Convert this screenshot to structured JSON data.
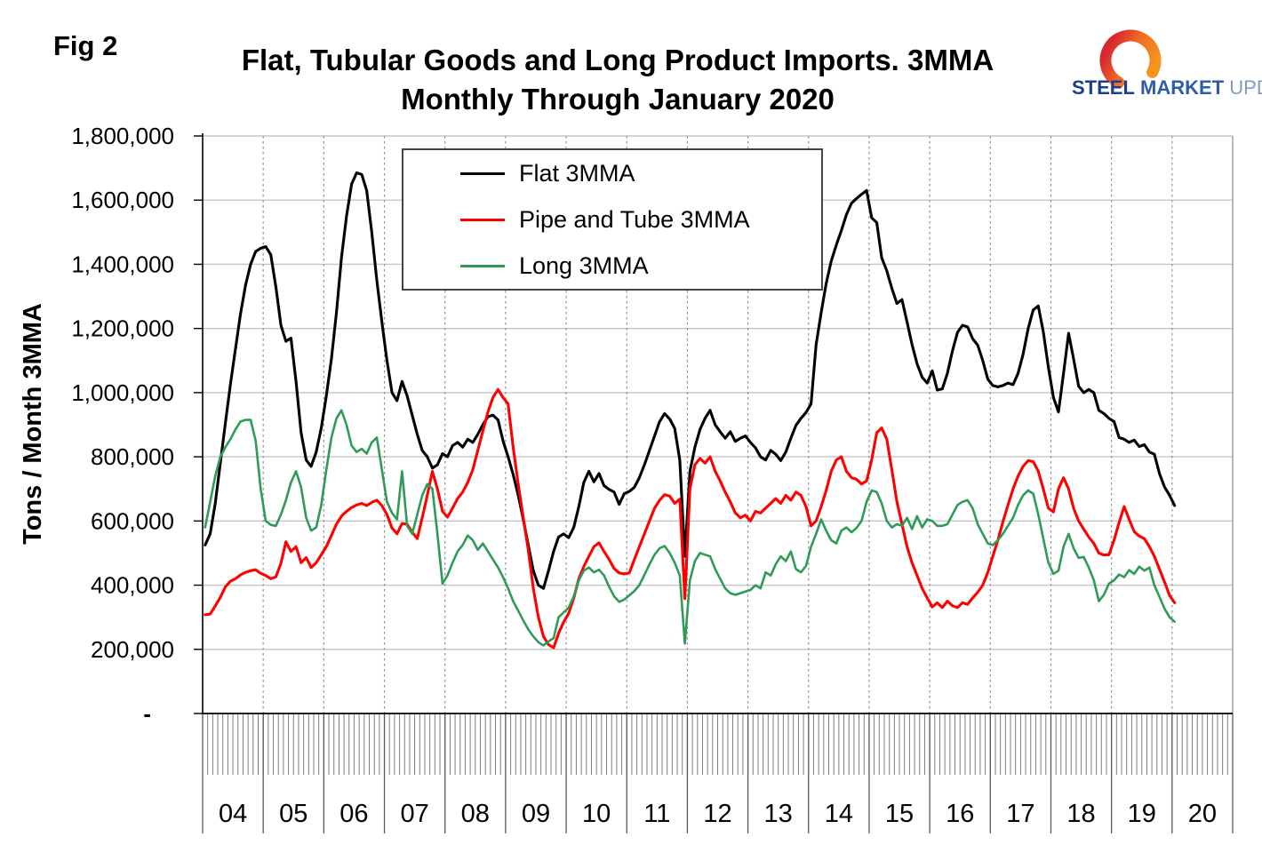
{
  "figure_label": "Fig 2",
  "title_line1": "Flat, Tubular Goods and Long Product Imports. 3MMA",
  "title_line2": "Monthly Through January 2020",
  "logo": {
    "steel": "STEEL",
    "market": "MARKET",
    "update": "UPDATE"
  },
  "y_axis_title": "Tons / Month 3MMA",
  "chart_data": {
    "type": "line",
    "title": "Flat, Tubular Goods and Long Product Imports. 3MMA Monthly Through January 2020",
    "xlabel": "",
    "ylabel": "Tons / Month 3MMA",
    "frequency": "monthly",
    "x_start": "2004-01",
    "x_end": "2020-01",
    "ylim": [
      0,
      1800000
    ],
    "grid": {
      "horizontal": "solid",
      "vertical": "dashed at year boundaries"
    },
    "x_tick_labels": [
      "04",
      "05",
      "06",
      "07",
      "08",
      "09",
      "10",
      "11",
      "12",
      "13",
      "14",
      "15",
      "16",
      "17",
      "18",
      "19",
      "20"
    ],
    "y_ticks": [
      {
        "value": 1800000,
        "label": "1,800,000"
      },
      {
        "value": 1600000,
        "label": "1,600,000"
      },
      {
        "value": 1400000,
        "label": "1,400,000"
      },
      {
        "value": 1200000,
        "label": "1,200,000"
      },
      {
        "value": 1000000,
        "label": "1,000,000"
      },
      {
        "value": 800000,
        "label": "800,000"
      },
      {
        "value": 600000,
        "label": "600,000"
      },
      {
        "value": 400000,
        "label": "400,000"
      },
      {
        "value": 200000,
        "label": "200,000"
      },
      {
        "value": 0,
        "label": "-"
      }
    ],
    "legend": {
      "position": "inside-top-center",
      "items": [
        {
          "label": "Flat 3MMA",
          "color": "#000000"
        },
        {
          "label": "Pipe and Tube 3MMA",
          "color": "#ff0000"
        },
        {
          "label": "Long 3MMA",
          "color": "#2e9b57"
        }
      ]
    },
    "series": [
      {
        "name": "Flat 3MMA",
        "color": "#000000",
        "unit": "tons/month",
        "values": [
          525000,
          560000,
          655000,
          780000,
          905000,
          1025000,
          1135000,
          1245000,
          1335000,
          1400000,
          1440000,
          1450000,
          1455000,
          1430000,
          1330000,
          1210000,
          1160000,
          1170000,
          1035000,
          875000,
          790000,
          770000,
          815000,
          890000,
          990000,
          1105000,
          1250000,
          1420000,
          1550000,
          1650000,
          1685000,
          1680000,
          1630000,
          1500000,
          1350000,
          1220000,
          1100000,
          1000000,
          975000,
          1035000,
          990000,
          930000,
          870000,
          820000,
          800000,
          765000,
          775000,
          810000,
          800000,
          835000,
          845000,
          830000,
          855000,
          845000,
          870000,
          900000,
          925000,
          930000,
          915000,
          850000,
          800000,
          745000,
          680000,
          605000,
          525000,
          445000,
          400000,
          390000,
          445000,
          505000,
          550000,
          560000,
          548000,
          580000,
          645000,
          720000,
          755000,
          722000,
          748000,
          710000,
          698000,
          690000,
          652000,
          685000,
          692000,
          705000,
          735000,
          775000,
          820000,
          865000,
          910000,
          935000,
          918000,
          888000,
          790000,
          490000,
          755000,
          830000,
          885000,
          920000,
          945000,
          900000,
          878000,
          858000,
          878000,
          848000,
          858000,
          865000,
          845000,
          828000,
          800000,
          790000,
          820000,
          808000,
          788000,
          815000,
          858000,
          898000,
          920000,
          938000,
          965000,
          1150000,
          1250000,
          1340000,
          1410000,
          1460000,
          1505000,
          1555000,
          1590000,
          1605000,
          1618000,
          1630000,
          1545000,
          1530000,
          1420000,
          1380000,
          1325000,
          1278000,
          1290000,
          1220000,
          1150000,
          1090000,
          1048000,
          1030000,
          1068000,
          1008000,
          1012000,
          1060000,
          1130000,
          1188000,
          1210000,
          1205000,
          1168000,
          1148000,
          1100000,
          1042000,
          1022000,
          1018000,
          1022000,
          1030000,
          1025000,
          1060000,
          1120000,
          1200000,
          1258000,
          1270000,
          1190000,
          1080000,
          985000,
          940000,
          1060000,
          1185000,
          1105000,
          1020000,
          1000000,
          1010000,
          1000000,
          945000,
          935000,
          920000,
          910000,
          860000,
          855000,
          845000,
          852000,
          832000,
          838000,
          815000,
          808000,
          748000,
          706000,
          680000,
          648000
        ]
      },
      {
        "name": "Pipe and Tube 3MMA",
        "color": "#ff0000",
        "unit": "tons/month",
        "values": [
          308000,
          310000,
          335000,
          362000,
          395000,
          412000,
          420000,
          432000,
          440000,
          445000,
          448000,
          437000,
          430000,
          420000,
          426000,
          468000,
          535000,
          505000,
          520000,
          470000,
          486000,
          455000,
          470000,
          495000,
          520000,
          555000,
          590000,
          615000,
          630000,
          642000,
          650000,
          655000,
          648000,
          658000,
          665000,
          648000,
          620000,
          578000,
          560000,
          592000,
          590000,
          565000,
          545000,
          610000,
          680000,
          755000,
          700000,
          630000,
          612000,
          640000,
          670000,
          690000,
          720000,
          760000,
          820000,
          880000,
          940000,
          985000,
          1010000,
          985000,
          965000,
          830000,
          715000,
          610000,
          510000,
          390000,
          300000,
          240000,
          215000,
          205000,
          250000,
          285000,
          312000,
          360000,
          420000,
          458000,
          490000,
          520000,
          532000,
          505000,
          480000,
          452000,
          438000,
          435000,
          438000,
          480000,
          520000,
          560000,
          600000,
          640000,
          665000,
          682000,
          678000,
          655000,
          668000,
          358000,
          700000,
          775000,
          795000,
          780000,
          800000,
          755000,
          725000,
          690000,
          660000,
          625000,
          610000,
          618000,
          600000,
          630000,
          625000,
          640000,
          655000,
          670000,
          655000,
          680000,
          665000,
          690000,
          680000,
          645000,
          585000,
          600000,
          645000,
          695000,
          755000,
          790000,
          800000,
          755000,
          735000,
          730000,
          715000,
          725000,
          790000,
          875000,
          890000,
          855000,
          760000,
          660000,
          590000,
          520000,
          470000,
          430000,
          390000,
          360000,
          332000,
          345000,
          330000,
          350000,
          336000,
          330000,
          345000,
          340000,
          360000,
          378000,
          400000,
          440000,
          490000,
          540000,
          598000,
          650000,
          700000,
          740000,
          770000,
          788000,
          785000,
          755000,
          700000,
          640000,
          628000,
          700000,
          735000,
          700000,
          640000,
          600000,
          575000,
          550000,
          530000,
          500000,
          494000,
          495000,
          540000,
          595000,
          645000,
          605000,
          567000,
          553000,
          545000,
          520000,
          490000,
          450000,
          410000,
          368000,
          345000
        ]
      },
      {
        "name": "Long 3MMA",
        "color": "#2e9b57",
        "unit": "tons/month",
        "values": [
          580000,
          660000,
          740000,
          800000,
          830000,
          855000,
          885000,
          910000,
          915000,
          915000,
          850000,
          700000,
          600000,
          588000,
          585000,
          620000,
          665000,
          720000,
          755000,
          705000,
          610000,
          570000,
          580000,
          650000,
          760000,
          860000,
          920000,
          945000,
          900000,
          835000,
          815000,
          825000,
          810000,
          845000,
          860000,
          760000,
          660000,
          625000,
          605000,
          755000,
          585000,
          560000,
          620000,
          680000,
          715000,
          700000,
          560000,
          405000,
          430000,
          470000,
          505000,
          525000,
          555000,
          540000,
          510000,
          530000,
          505000,
          480000,
          455000,
          425000,
          390000,
          350000,
          320000,
          290000,
          262000,
          240000,
          222000,
          212000,
          225000,
          235000,
          300000,
          315000,
          330000,
          365000,
          415000,
          445000,
          455000,
          440000,
          448000,
          430000,
          395000,
          365000,
          348000,
          355000,
          368000,
          382000,
          400000,
          432000,
          465000,
          495000,
          515000,
          522000,
          500000,
          470000,
          430000,
          218000,
          415000,
          475000,
          500000,
          495000,
          490000,
          450000,
          420000,
          390000,
          375000,
          370000,
          375000,
          380000,
          385000,
          400000,
          390000,
          440000,
          430000,
          465000,
          490000,
          475000,
          505000,
          450000,
          440000,
          460000,
          520000,
          560000,
          605000,
          570000,
          540000,
          530000,
          570000,
          580000,
          565000,
          578000,
          600000,
          660000,
          695000,
          690000,
          655000,
          600000,
          580000,
          590000,
          585000,
          610000,
          575000,
          615000,
          580000,
          605000,
          600000,
          585000,
          585000,
          590000,
          620000,
          650000,
          660000,
          665000,
          640000,
          590000,
          560000,
          530000,
          525000,
          540000,
          560000,
          585000,
          610000,
          650000,
          680000,
          695000,
          685000,
          620000,
          545000,
          470000,
          435000,
          445000,
          520000,
          560000,
          515000,
          485000,
          488000,
          455000,
          415000,
          350000,
          370000,
          405000,
          415000,
          433000,
          425000,
          447000,
          435000,
          458000,
          445000,
          455000,
          400000,
          364000,
          327000,
          300000,
          286000
        ]
      }
    ]
  }
}
